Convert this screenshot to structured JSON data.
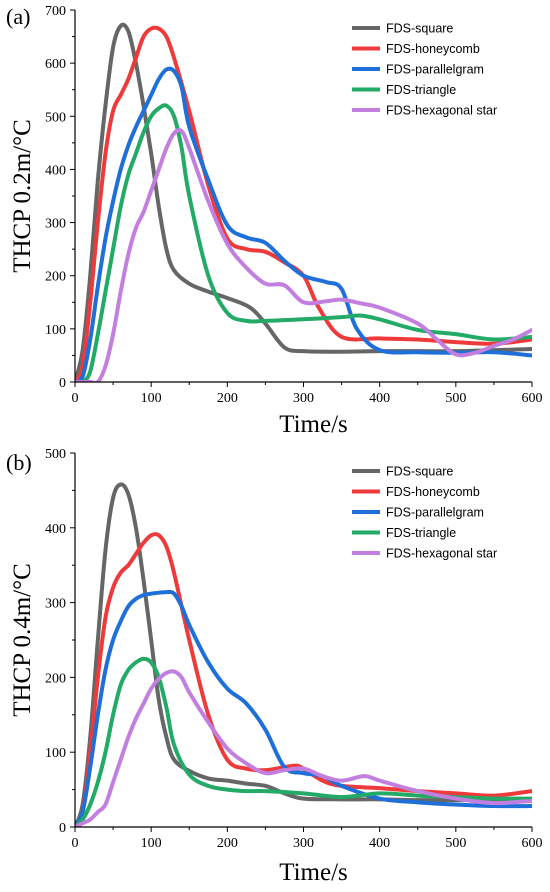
{
  "chart_data": [
    {
      "type": "line",
      "panel_label": "(a)",
      "xlabel": "Time/s",
      "ylabel": "THCP 0.2m/°C",
      "xlim": [
        0,
        600
      ],
      "ylim": [
        0,
        700
      ],
      "xticks": [
        0,
        100,
        200,
        300,
        400,
        500,
        600
      ],
      "yticks": [
        0,
        100,
        200,
        300,
        400,
        500,
        600,
        700
      ],
      "grid": false,
      "legend_position": "top-right",
      "series": [
        {
          "name": "FDS-square",
          "color": "#666666",
          "x": [
            0,
            10,
            20,
            30,
            40,
            50,
            60,
            70,
            80,
            90,
            100,
            110,
            120,
            130,
            150,
            175,
            200,
            230,
            250,
            275,
            300,
            350,
            400,
            450,
            500,
            550,
            600
          ],
          "y": [
            0,
            60,
            200,
            380,
            520,
            630,
            670,
            660,
            600,
            520,
            430,
            330,
            250,
            210,
            185,
            170,
            158,
            140,
            110,
            65,
            58,
            57,
            58,
            58,
            58,
            60,
            62
          ]
        },
        {
          "name": "FDS-honeycomb",
          "color": "#ee3a3a",
          "x": [
            0,
            10,
            20,
            30,
            40,
            50,
            60,
            70,
            80,
            90,
            100,
            110,
            120,
            130,
            150,
            175,
            200,
            225,
            250,
            275,
            300,
            320,
            350,
            400,
            450,
            500,
            550,
            600
          ],
          "y": [
            0,
            30,
            150,
            300,
            430,
            510,
            540,
            570,
            610,
            650,
            665,
            665,
            650,
            610,
            510,
            370,
            270,
            250,
            245,
            225,
            200,
            140,
            85,
            82,
            80,
            75,
            72,
            80
          ]
        },
        {
          "name": "FDS-parallelgram",
          "color": "#1f6fd9",
          "x": [
            0,
            10,
            20,
            30,
            40,
            50,
            60,
            70,
            80,
            90,
            100,
            110,
            120,
            130,
            140,
            150,
            175,
            200,
            225,
            250,
            275,
            300,
            330,
            350,
            370,
            400,
            450,
            500,
            550,
            600
          ],
          "y": [
            0,
            10,
            80,
            180,
            270,
            340,
            400,
            445,
            480,
            510,
            540,
            570,
            588,
            585,
            555,
            480,
            380,
            295,
            272,
            262,
            228,
            200,
            188,
            175,
            100,
            60,
            56,
            55,
            56,
            50
          ]
        },
        {
          "name": "FDS-triangle",
          "color": "#22aa66",
          "x": [
            0,
            10,
            20,
            30,
            40,
            50,
            60,
            70,
            80,
            90,
            100,
            110,
            120,
            130,
            140,
            150,
            175,
            200,
            225,
            250,
            300,
            350,
            375,
            400,
            450,
            500,
            550,
            600
          ],
          "y": [
            0,
            0,
            20,
            90,
            170,
            250,
            330,
            390,
            430,
            470,
            500,
            515,
            520,
            500,
            440,
            350,
            200,
            130,
            115,
            115,
            118,
            122,
            125,
            118,
            98,
            90,
            80,
            85
          ]
        },
        {
          "name": "FDS-hexagonal star",
          "color": "#c27fe0",
          "x": [
            0,
            20,
            30,
            40,
            50,
            60,
            70,
            80,
            90,
            100,
            110,
            120,
            130,
            140,
            150,
            175,
            200,
            225,
            250,
            275,
            300,
            330,
            350,
            375,
            400,
            450,
            475,
            500,
            525,
            550,
            575,
            600
          ],
          "y": [
            0,
            0,
            0,
            30,
            90,
            170,
            240,
            290,
            320,
            360,
            400,
            440,
            468,
            472,
            440,
            340,
            260,
            215,
            185,
            182,
            150,
            152,
            155,
            148,
            140,
            110,
            80,
            52,
            55,
            68,
            80,
            98
          ]
        }
      ]
    },
    {
      "type": "line",
      "panel_label": "(b)",
      "xlabel": "Time/s",
      "ylabel": "THCP 0.4m/°C",
      "xlim": [
        0,
        600
      ],
      "ylim": [
        0,
        500
      ],
      "xticks": [
        0,
        100,
        200,
        300,
        400,
        500,
        600
      ],
      "yticks": [
        0,
        100,
        200,
        300,
        400,
        500
      ],
      "grid": false,
      "legend_position": "top-right",
      "series": [
        {
          "name": "FDS-square",
          "color": "#666666",
          "x": [
            0,
            10,
            20,
            30,
            40,
            50,
            60,
            70,
            80,
            90,
            100,
            110,
            120,
            130,
            150,
            175,
            200,
            225,
            250,
            275,
            300,
            350,
            400,
            450,
            500,
            550,
            600
          ],
          "y": [
            0,
            30,
            120,
            250,
            370,
            440,
            458,
            445,
            400,
            330,
            250,
            170,
            120,
            90,
            75,
            65,
            62,
            58,
            55,
            45,
            38,
            37,
            37,
            36,
            36,
            36,
            37
          ]
        },
        {
          "name": "FDS-honeycomb",
          "color": "#ee3a3a",
          "x": [
            0,
            10,
            20,
            30,
            40,
            50,
            60,
            70,
            80,
            90,
            100,
            110,
            120,
            130,
            150,
            175,
            200,
            225,
            250,
            275,
            290,
            300,
            325,
            350,
            400,
            450,
            500,
            550,
            600
          ],
          "y": [
            0,
            20,
            100,
            200,
            280,
            320,
            340,
            350,
            365,
            380,
            390,
            390,
            375,
            340,
            250,
            150,
            90,
            78,
            76,
            80,
            82,
            78,
            62,
            55,
            52,
            48,
            45,
            42,
            48
          ]
        },
        {
          "name": "FDS-parallelgram",
          "color": "#1f6fd9",
          "x": [
            0,
            10,
            20,
            30,
            40,
            50,
            60,
            70,
            80,
            90,
            100,
            120,
            130,
            140,
            150,
            175,
            200,
            225,
            250,
            275,
            300,
            325,
            350,
            400,
            450,
            500,
            550,
            600
          ],
          "y": [
            0,
            20,
            80,
            150,
            210,
            250,
            275,
            295,
            305,
            310,
            312,
            314,
            312,
            295,
            270,
            220,
            185,
            165,
            130,
            80,
            72,
            68,
            55,
            38,
            33,
            30,
            28,
            28
          ]
        },
        {
          "name": "FDS-triangle",
          "color": "#22aa66",
          "x": [
            0,
            10,
            20,
            30,
            40,
            50,
            60,
            70,
            80,
            90,
            100,
            110,
            120,
            130,
            150,
            175,
            200,
            225,
            250,
            300,
            350,
            400,
            450,
            500,
            550,
            600
          ],
          "y": [
            0,
            10,
            30,
            60,
            100,
            150,
            190,
            210,
            220,
            225,
            220,
            200,
            160,
            110,
            70,
            55,
            50,
            48,
            48,
            45,
            40,
            45,
            42,
            40,
            38,
            38
          ]
        },
        {
          "name": "FDS-hexagonal star",
          "color": "#c27fe0",
          "x": [
            0,
            10,
            20,
            30,
            40,
            50,
            60,
            70,
            80,
            90,
            100,
            110,
            120,
            130,
            140,
            150,
            175,
            200,
            225,
            250,
            275,
            300,
            325,
            350,
            380,
            400,
            450,
            500,
            550,
            600
          ],
          "y": [
            0,
            5,
            10,
            20,
            30,
            60,
            90,
            120,
            145,
            165,
            185,
            198,
            206,
            208,
            200,
            180,
            140,
            105,
            85,
            72,
            76,
            78,
            68,
            62,
            68,
            62,
            48,
            38,
            32,
            35
          ]
        }
      ]
    }
  ]
}
